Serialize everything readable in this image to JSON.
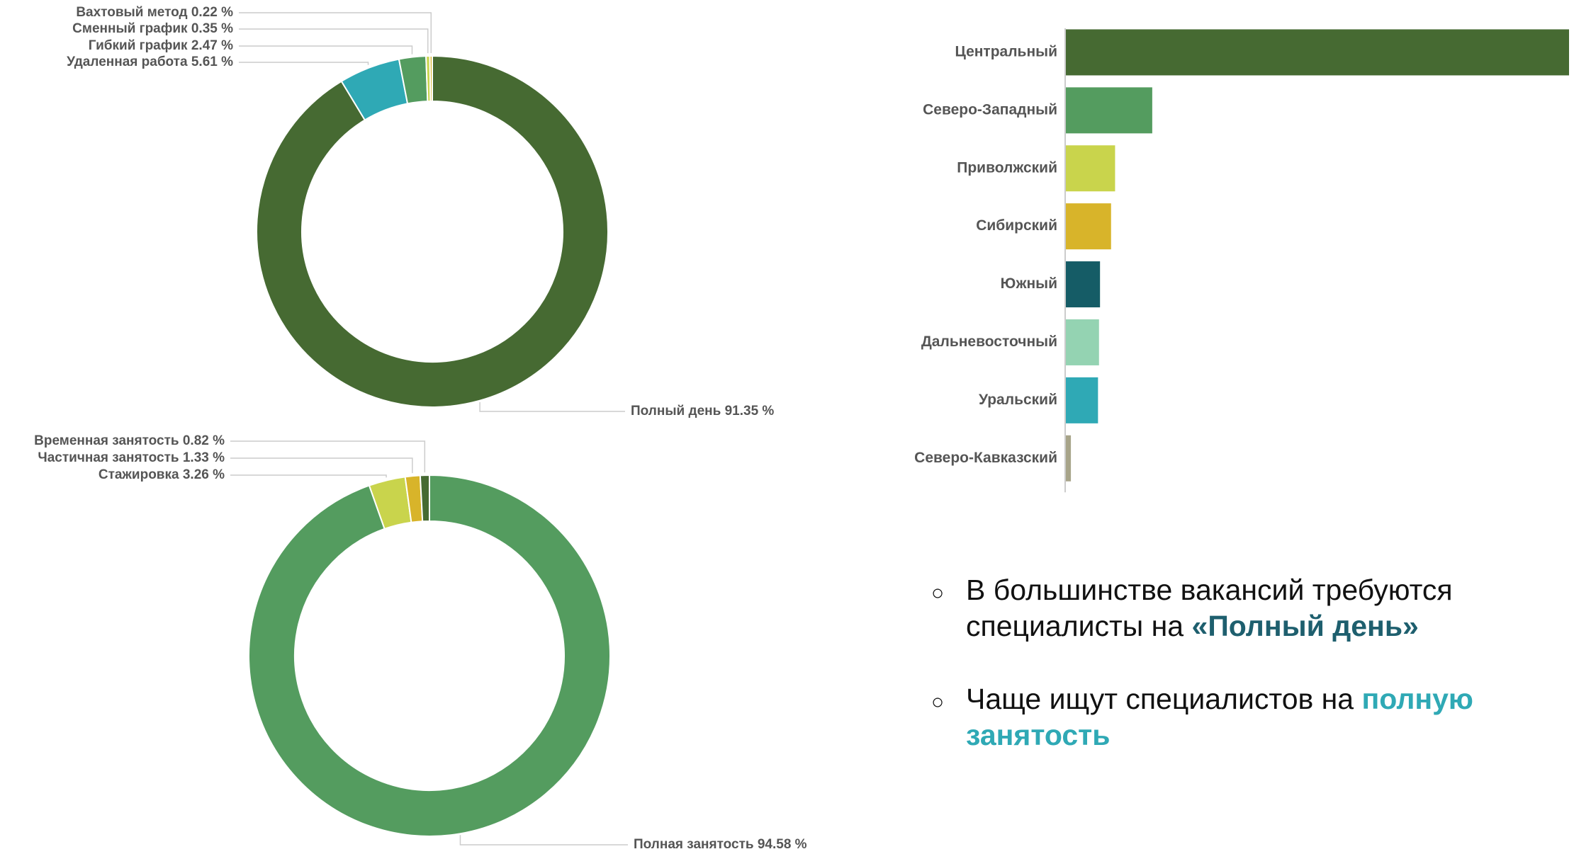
{
  "chart_data": [
    {
      "type": "donut",
      "categories": [
        "Полный день",
        "Удаленная работа",
        "Гибкий график",
        "Сменный график",
        "Вахтовый метод"
      ],
      "values": [
        91.35,
        5.61,
        2.47,
        0.35,
        0.22
      ],
      "value_labels": [
        "91.35 %",
        "5.61 %",
        "2.47 %",
        "0.35 %",
        "0.22 %"
      ],
      "colors": [
        "#466a32",
        "#2fa9b5",
        "#549c5f",
        "#c9d44c",
        "#d8b42a"
      ]
    },
    {
      "type": "donut",
      "categories": [
        "Полная занятость",
        "Стажировка",
        "Частичная занятость",
        "Временная занятость"
      ],
      "values": [
        94.58,
        3.26,
        1.33,
        0.82
      ],
      "value_labels": [
        "94.58 %",
        "3.26 %",
        "1.33 %",
        "0.82 %"
      ],
      "colors": [
        "#549c5f",
        "#c9d44c",
        "#d8b42a",
        "#466a32"
      ]
    },
    {
      "type": "hbar",
      "categories": [
        "Центральный",
        "Северо-Западный",
        "Приволжский",
        "Сибирский",
        "Южный",
        "Дальневосточный",
        "Уральский",
        "Северо-Кавказский"
      ],
      "values": [
        501,
        86,
        49,
        45,
        34,
        33,
        32,
        5
      ],
      "colors": [
        "#466a32",
        "#549c5f",
        "#c9d44c",
        "#d8b42a",
        "#155c66",
        "#94d3b2",
        "#2fa9b5",
        "#a7a489"
      ]
    }
  ],
  "bullets": [
    {
      "text": "В большинстве вакансий требуются специалисты на",
      "highlight": "«Полный день»",
      "highlight_color": "#1e5f6e"
    },
    {
      "text": "Чаще ищут специалистов на",
      "highlight": "полную занятость",
      "highlight_color": "#2fa9b5"
    }
  ]
}
